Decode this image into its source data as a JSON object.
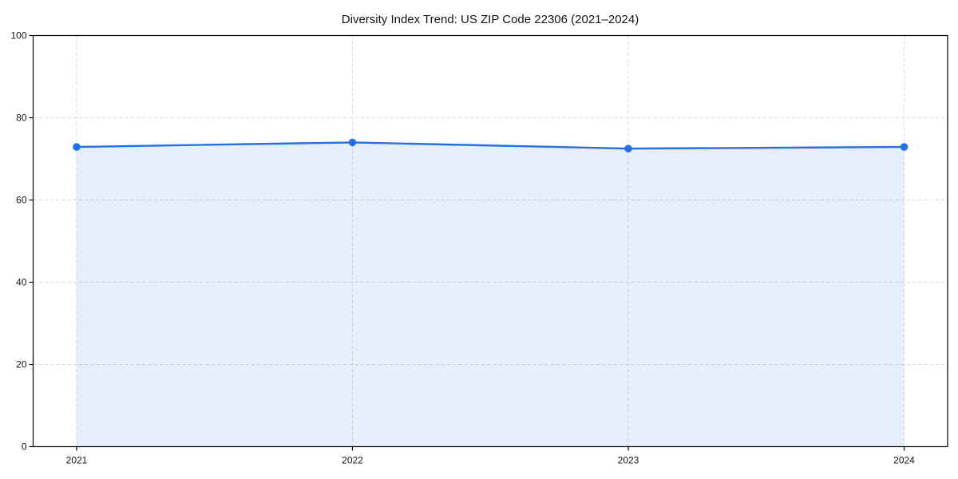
{
  "figure": {
    "background": "#ffffff"
  },
  "chart_data": {
    "type": "line",
    "title": "Diversity Index Trend: US ZIP Code 22306 (2021–2024)",
    "x": [
      2021,
      2022,
      2023,
      2024
    ],
    "xtick_labels": [
      "2021",
      "2022",
      "2023",
      "2024"
    ],
    "series": [
      {
        "name": "Diversity Index",
        "values": [
          72.9,
          74.0,
          72.5,
          72.9
        ],
        "marker": "circle",
        "area_fill": true
      }
    ],
    "xlabel": "",
    "ylabel": "",
    "ylim": [
      0,
      100
    ],
    "yticks": [
      0,
      20,
      40,
      60,
      80,
      100
    ],
    "grid": true,
    "grid_style": "dashed",
    "legend_position": "none",
    "colors": {
      "line": "#2471e3",
      "marker": "#2471e3",
      "area_fill": "rgba(36,113,227,0.12)",
      "grid": "#d9d9d9",
      "spine": "#000000",
      "tick": "#000000",
      "text": "#151515",
      "background": "#ffffff"
    }
  }
}
